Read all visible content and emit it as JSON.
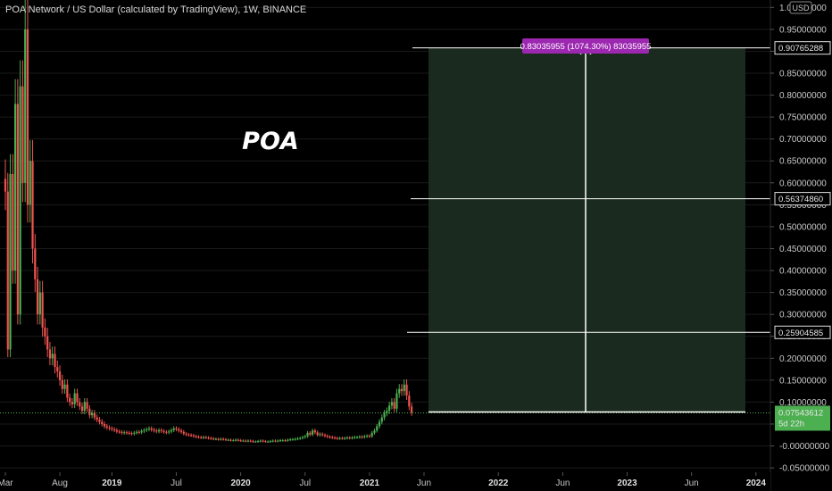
{
  "header": {
    "symbol_title": "POA Network / US Dollar (calculated by TradingView), 1W, BINANCE",
    "currency": "USD"
  },
  "annotation": {
    "text": "POA"
  },
  "measure": {
    "label": "0.83035955 (1074.30%) 83035955",
    "from": 0.07729333,
    "to": 0.90765288,
    "fill_color": "#1b2a1e",
    "label_bg": "#9c27b0"
  },
  "levels": [
    {
      "value": 0.90765288,
      "label": "0.90765288"
    },
    {
      "value": 0.5637486,
      "label": "0.56374860"
    },
    {
      "value": 0.25904585,
      "label": "0.25904585"
    }
  ],
  "price": {
    "value": 0.07543612,
    "label": "0.07543612",
    "countdown": "5d 22h",
    "color": "#4caf50"
  },
  "colors": {
    "up": "#26a69a",
    "up_candle": "#4caf50",
    "down": "#ef5350",
    "grid": "#1a1a1a"
  },
  "chart_data": {
    "type": "candlestick",
    "title": "POA Network / US Dollar (calculated by TradingView), 1W, BINANCE",
    "y_axis": {
      "ylim": [
        -0.06,
        1.02
      ],
      "ticks": [
        "1.00000000",
        "0.95000000",
        "0.90000000",
        "0.85000000",
        "0.80000000",
        "0.75000000",
        "0.70000000",
        "0.65000000",
        "0.60000000",
        "0.55000000",
        "0.50000000",
        "0.45000000",
        "0.40000000",
        "0.35000000",
        "0.30000000",
        "0.25000000",
        "0.20000000",
        "0.15000000",
        "0.10000000",
        "0.05000000",
        "-0.00000000",
        "-0.05000000"
      ]
    },
    "x_axis": {
      "ticks": [
        "Mar",
        "Aug",
        "2019",
        "Jul",
        "2020",
        "Jul",
        "2021",
        "Jun",
        "2022",
        "Jun",
        "2023",
        "Jun",
        "2024"
      ],
      "tick_weeks": [
        0,
        22,
        43,
        69,
        95,
        121,
        147,
        169,
        199,
        225,
        251,
        277,
        303
      ]
    },
    "series": [
      {
        "name": "POA/USD",
        "close": [
          0.58,
          0.22,
          0.62,
          0.4,
          0.78,
          0.3,
          0.82,
          0.6,
          0.95,
          0.55,
          0.65,
          0.45,
          0.38,
          0.3,
          0.35,
          0.27,
          0.25,
          0.22,
          0.2,
          0.21,
          0.18,
          0.17,
          0.15,
          0.13,
          0.14,
          0.11,
          0.1,
          0.095,
          0.12,
          0.1,
          0.09,
          0.08,
          0.1,
          0.085,
          0.07,
          0.075,
          0.065,
          0.06,
          0.055,
          0.05,
          0.045,
          0.042,
          0.04,
          0.038,
          0.036,
          0.033,
          0.032,
          0.03,
          0.031,
          0.03,
          0.029,
          0.028,
          0.03,
          0.032,
          0.031,
          0.034,
          0.036,
          0.038,
          0.04,
          0.037,
          0.035,
          0.033,
          0.036,
          0.034,
          0.032,
          0.031,
          0.033,
          0.036,
          0.04,
          0.038,
          0.035,
          0.032,
          0.028,
          0.026,
          0.025,
          0.024,
          0.022,
          0.021,
          0.02,
          0.019,
          0.02,
          0.019,
          0.018,
          0.017,
          0.016,
          0.016,
          0.015,
          0.016,
          0.015,
          0.014,
          0.014,
          0.013,
          0.013,
          0.014,
          0.013,
          0.012,
          0.012,
          0.011,
          0.012,
          0.011,
          0.01,
          0.01,
          0.011,
          0.012,
          0.011,
          0.01,
          0.01,
          0.011,
          0.012,
          0.011,
          0.012,
          0.013,
          0.013,
          0.012,
          0.014,
          0.015,
          0.015,
          0.016,
          0.017,
          0.018,
          0.02,
          0.022,
          0.03,
          0.026,
          0.035,
          0.031,
          0.025,
          0.027,
          0.025,
          0.023,
          0.021,
          0.02,
          0.019,
          0.018,
          0.017,
          0.018,
          0.017,
          0.018,
          0.019,
          0.018,
          0.019,
          0.02,
          0.02,
          0.021,
          0.02,
          0.022,
          0.023,
          0.022,
          0.03,
          0.035,
          0.045,
          0.055,
          0.065,
          0.075,
          0.08,
          0.092,
          0.1,
          0.085,
          0.12,
          0.13,
          0.125,
          0.14,
          0.115,
          0.09,
          0.076
        ]
      }
    ]
  }
}
